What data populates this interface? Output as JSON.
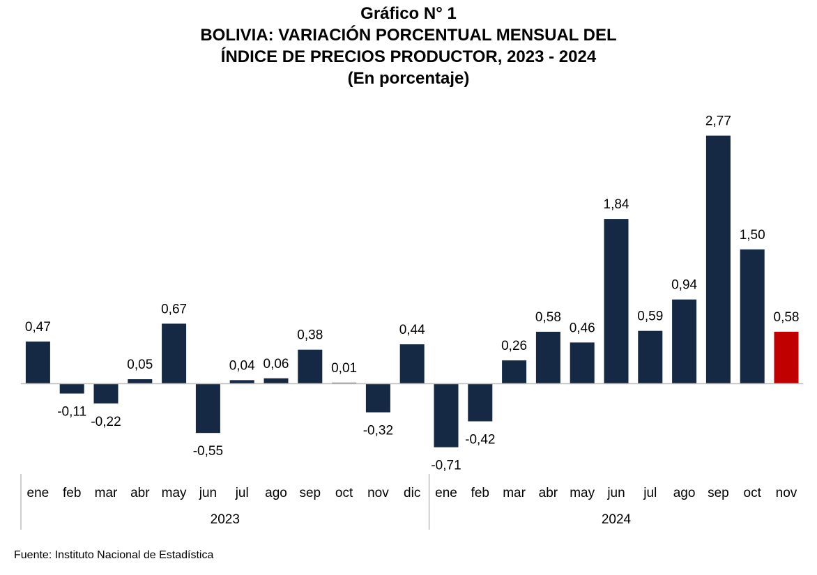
{
  "header": {
    "line1": "Gráfico N° 1",
    "line2": "BOLIVIA: VARIACIÓN PORCENTUAL MENSUAL DEL",
    "line3": "ÍNDICE DE PRECIOS PRODUCTOR, 2023 - 2024",
    "line4": "(En porcentaje)"
  },
  "source": "Fuente: Instituto Nacional de Estadística",
  "colors": {
    "bar": "#152844",
    "highlight": "#c00000",
    "axis": "#bfbfbf"
  },
  "chart_data": {
    "type": "bar",
    "title": "BOLIVIA: VARIACIÓN PORCENTUAL MENSUAL DEL ÍNDICE DE PRECIOS PRODUCTOR, 2023 - 2024",
    "subtitle": "(En porcentaje)",
    "categories": [
      "ene",
      "feb",
      "mar",
      "abr",
      "may",
      "jun",
      "jul",
      "ago",
      "sep",
      "oct",
      "nov",
      "dic",
      "ene",
      "feb",
      "mar",
      "abr",
      "may",
      "jun",
      "jul",
      "ago",
      "sep",
      "oct",
      "nov"
    ],
    "labels": [
      "0,47",
      "-0,11",
      "-0,22",
      "0,05",
      "0,67",
      "-0,55",
      "0,04",
      "0,06",
      "0,38",
      "0,01",
      "-0,32",
      "0,44",
      "-0,71",
      "-0,42",
      "0,26",
      "0,58",
      "0,46",
      "1,84",
      "0,59",
      "0,94",
      "2,77",
      "1,50",
      "0,58"
    ],
    "values": [
      0.47,
      -0.11,
      -0.22,
      0.05,
      0.67,
      -0.55,
      0.04,
      0.06,
      0.38,
      0.01,
      -0.32,
      0.44,
      -0.71,
      -0.42,
      0.26,
      0.58,
      0.46,
      1.84,
      0.59,
      0.94,
      2.77,
      1.5,
      0.58
    ],
    "groups": [
      {
        "label": "2023",
        "start": 0,
        "end": 11
      },
      {
        "label": "2024",
        "start": 12,
        "end": 22
      }
    ],
    "highlight_index": 22,
    "xlabel": "",
    "ylabel": "",
    "grid": false,
    "legend": "none"
  }
}
